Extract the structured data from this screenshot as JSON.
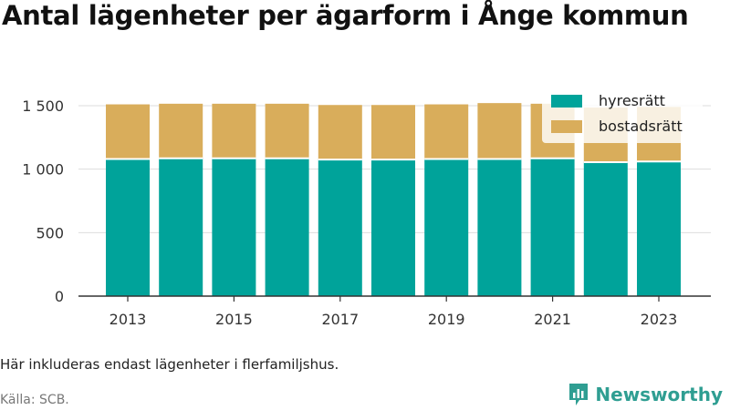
{
  "title": "Antal lägenheter per ägarform i Ånge kommun",
  "note": "Här inkluderas endast lägenheter i flerfamiljshus.",
  "source": "Källa: SCB.",
  "brand": {
    "name": "Newsworthy",
    "icon": "newsworthy-logo-icon",
    "color": "#2f9e92"
  },
  "colors": {
    "hyresratt": "#00a39a",
    "bostadsratt": "#d9ad5b"
  },
  "chart_data": {
    "type": "bar",
    "stacked": true,
    "categories": [
      "2013",
      "2014",
      "2015",
      "2016",
      "2017",
      "2018",
      "2019",
      "2020",
      "2021",
      "2022",
      "2023"
    ],
    "x_tick_labels": [
      "2013",
      "2015",
      "2017",
      "2019",
      "2021",
      "2023"
    ],
    "series": [
      {
        "name": "hyresrätt",
        "color": "#00a39a",
        "values": [
          1080,
          1085,
          1085,
          1085,
          1075,
          1075,
          1080,
          1080,
          1085,
          1055,
          1060
        ]
      },
      {
        "name": "bostadsrätt",
        "color": "#d9ad5b",
        "values": [
          430,
          430,
          430,
          430,
          430,
          430,
          430,
          440,
          430,
          430,
          430
        ]
      }
    ],
    "ylim": [
      0,
      1600
    ],
    "y_ticks": [
      0,
      500,
      1000,
      1500
    ],
    "y_tick_labels": [
      "0",
      "500",
      "1 000",
      "1 500"
    ],
    "grid": true,
    "legend": "top-right"
  }
}
